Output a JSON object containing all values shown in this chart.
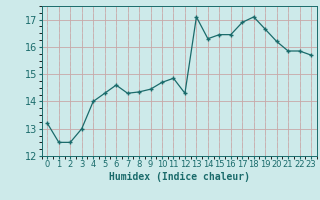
{
  "x": [
    0,
    1,
    2,
    3,
    4,
    5,
    6,
    7,
    8,
    9,
    10,
    11,
    12,
    13,
    14,
    15,
    16,
    17,
    18,
    19,
    20,
    21,
    22,
    23
  ],
  "y": [
    13.2,
    12.5,
    12.5,
    13.0,
    14.0,
    14.3,
    14.6,
    14.3,
    14.35,
    14.45,
    14.7,
    14.85,
    14.3,
    17.1,
    16.3,
    16.45,
    16.45,
    16.9,
    17.1,
    16.65,
    16.2,
    15.85,
    15.85,
    15.7
  ],
  "xlabel": "Humidex (Indice chaleur)",
  "bg_color": "#cdeaea",
  "line_color": "#1a6b6b",
  "grid_major_color": "#b8d4d4",
  "grid_minor_color": "#cdeaea",
  "ylim": [
    12,
    17.5
  ],
  "xlim": [
    -0.5,
    23.5
  ],
  "yticks": [
    12,
    13,
    14,
    15,
    16,
    17
  ],
  "xticks": [
    0,
    1,
    2,
    3,
    4,
    5,
    6,
    7,
    8,
    9,
    10,
    11,
    12,
    13,
    14,
    15,
    16,
    17,
    18,
    19,
    20,
    21,
    22,
    23
  ],
  "xlabel_fontsize": 7,
  "tick_fontsize": 6,
  "ytick_fontsize": 7
}
